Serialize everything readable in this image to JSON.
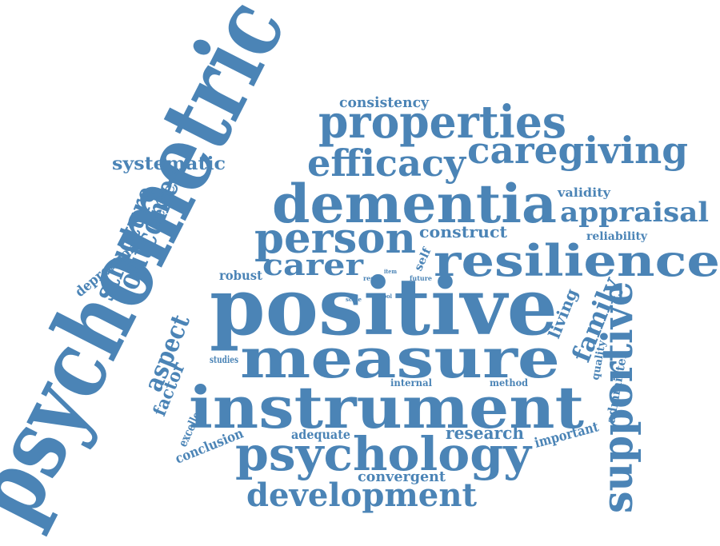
{
  "word_cloud": {
    "color": "#4b84b6",
    "words": {
      "psychometric": "psychometric",
      "positive": "positive",
      "measure": "measure",
      "instrument": "instrument",
      "dementia": "dementia",
      "resilience": "resilience",
      "properties": "properties",
      "psychology": "psychology",
      "caregiving": "caregiving",
      "efficacy": "efficacy",
      "person": "person",
      "supportive": "supportive",
      "development": "development",
      "appraisal": "appraisal",
      "carer": "carer",
      "outcome": "outcome",
      "structure": "structure",
      "family": "family",
      "aspect": "aspect",
      "systematic": "systematic",
      "construct": "construct",
      "factor": "factor",
      "research": "research",
      "consistency": "consistency",
      "review": "review",
      "living": "living",
      "convergent": "convergent",
      "important": "important",
      "robust": "robust",
      "depression": "depression",
      "validity": "validity",
      "reliability": "reliability",
      "adequate": "adequate",
      "conclusion": "conclusion",
      "excellent": "excellent",
      "administer": "administer",
      "quality": "quality",
      "self": "self",
      "internal": "internal",
      "method": "method",
      "studies": "studies",
      "result": "result",
      "item": "item",
      "future": "future",
      "scale": "scale",
      "tool": "tool"
    }
  }
}
